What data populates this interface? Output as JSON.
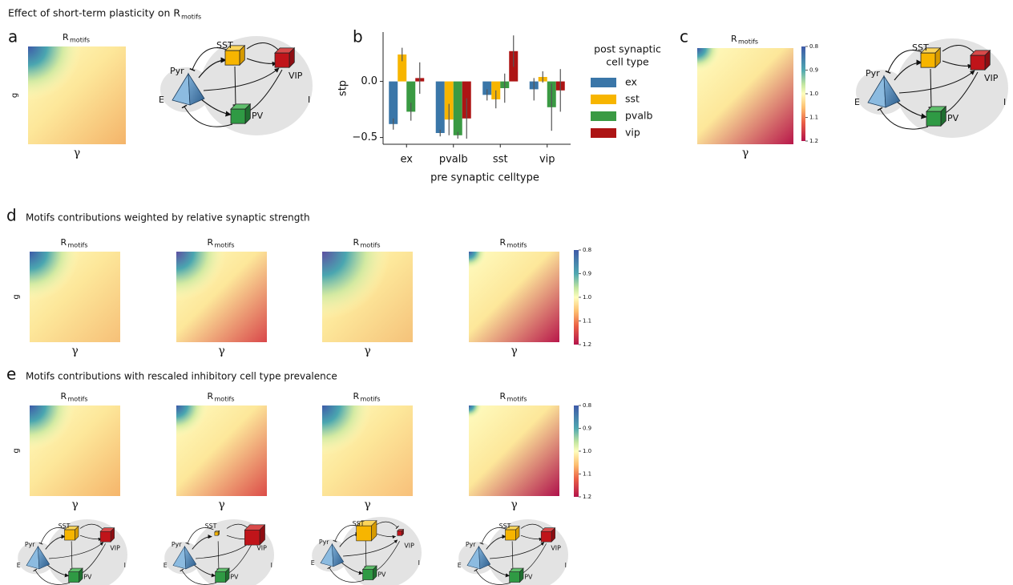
{
  "title": {
    "text": "Effect of short-term plasticity on R",
    "sub": "motifs"
  },
  "panel_labels": [
    "a",
    "b",
    "c",
    "d",
    "e"
  ],
  "section_titles": {
    "d": "Motifs contributions weighted by relative synaptic strength",
    "e": "Motifs contributions with rescaled inhibitory cell type prevalence"
  },
  "heatmap": {
    "title": "R",
    "title_sub": "motifs",
    "xlabel": "γ",
    "ylabel": "g"
  },
  "colorbar": {
    "lim": [
      0.8,
      1.2
    ],
    "ticks": [
      0.8,
      0.9,
      {
        "value": 1,
        "label": "1.0"
      },
      1.1,
      1.2
    ]
  },
  "network": {
    "pyr": "Pyr",
    "sst": "SST",
    "vip": "VIP",
    "pv": "PV",
    "e": "E",
    "i": "I"
  },
  "chart_data": {
    "type": "bar",
    "categories": [
      "ex",
      "pvalb",
      "sst",
      "vip"
    ],
    "series": [
      {
        "name": "ex",
        "color": "#3a76a8",
        "values": [
          -0.38,
          -0.46,
          -0.12,
          -0.07
        ],
        "errors": [
          0.05,
          0.03,
          0.05,
          0.1
        ]
      },
      {
        "name": "sst",
        "color": "#f7b500",
        "values": [
          0.24,
          -0.34,
          -0.16,
          0.04
        ],
        "errors": [
          0.06,
          0.14,
          0.08,
          0.05
        ]
      },
      {
        "name": "pvalb",
        "color": "#3a9a43",
        "values": [
          -0.27,
          -0.48,
          -0.06,
          -0.23
        ],
        "errors": [
          0.08,
          0.03,
          0.13,
          0.21
        ]
      },
      {
        "name": "vip",
        "color": "#ad1414",
        "values": [
          0.03,
          -0.33,
          0.27,
          -0.08
        ],
        "errors": [
          0.14,
          0.18,
          0.14,
          0.19
        ]
      }
    ],
    "ylabel": "stp",
    "xlabel": "pre synaptic celltype",
    "legend_title": [
      "post synaptic",
      "cell type"
    ],
    "ylim": [
      -0.56,
      0.44
    ],
    "yticks": [
      {
        "value": -0.5,
        "label": "−0.5"
      },
      {
        "value": 0,
        "label": "0.0"
      }
    ]
  }
}
